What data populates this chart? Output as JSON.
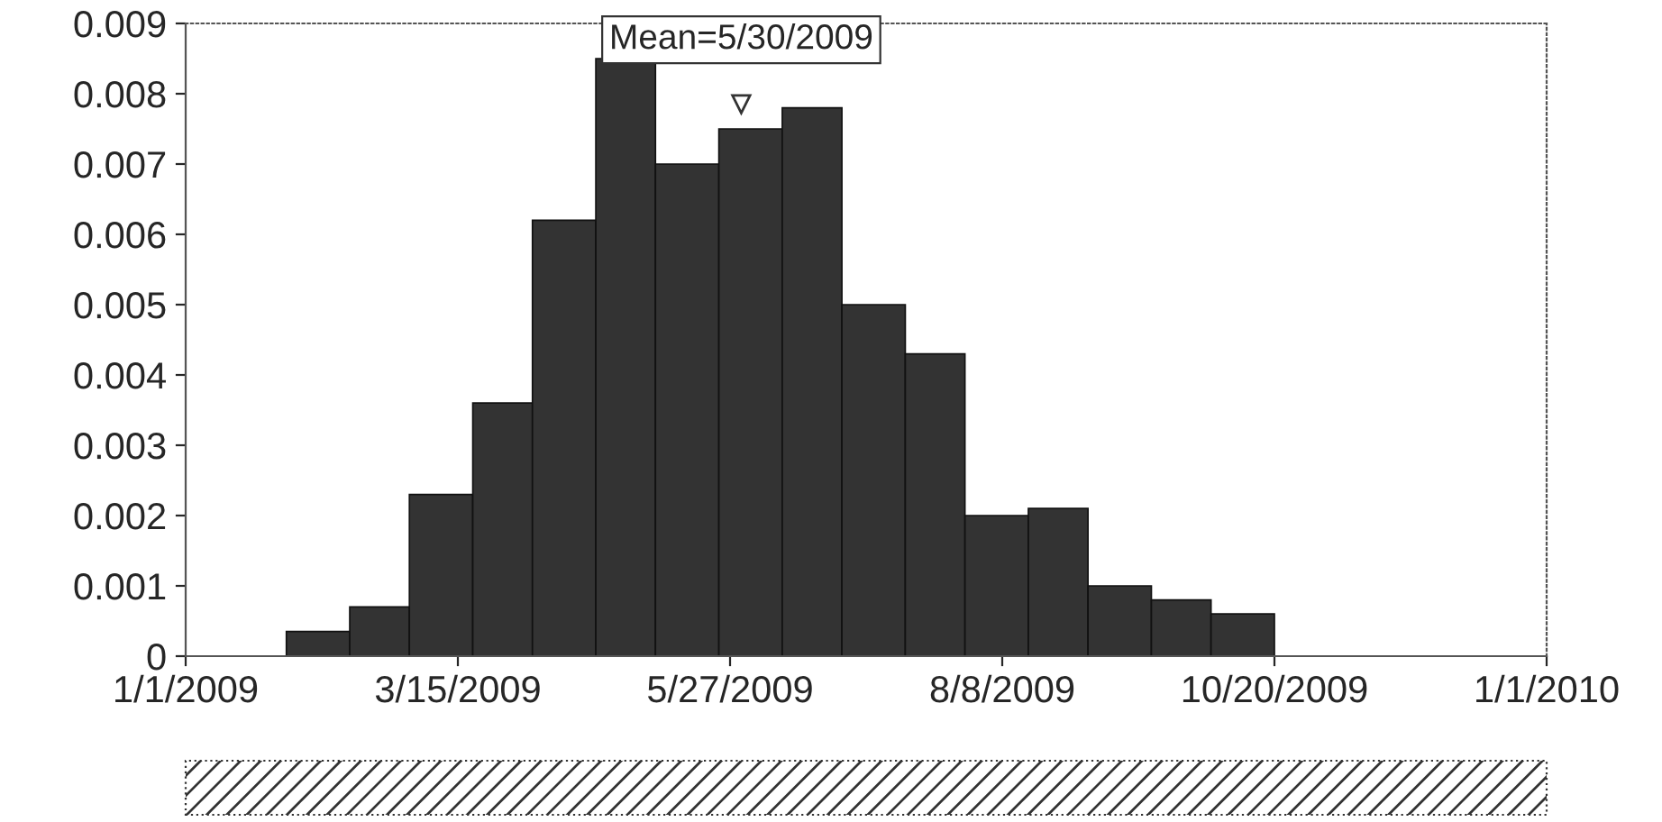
{
  "chart_data": {
    "type": "histogram",
    "bins": [
      "2009-01-28",
      "2009-02-14",
      "2009-03-02",
      "2009-03-19",
      "2009-04-04",
      "2009-04-21",
      "2009-05-07",
      "2009-05-24",
      "2009-06-10",
      "2009-06-26",
      "2009-07-13",
      "2009-07-29",
      "2009-08-15",
      "2009-08-31",
      "2009-09-17",
      "2009-10-03",
      "2009-10-20"
    ],
    "values": [
      0.00035,
      0.0007,
      0.0023,
      0.0036,
      0.0062,
      0.0085,
      0.007,
      0.0075,
      0.0078,
      0.005,
      0.0043,
      0.002,
      0.0021,
      0.001,
      0.0008,
      0.0006
    ],
    "color": "#333333",
    "xlim": [
      "2009-01-01",
      "2010-01-01"
    ],
    "xticks": [
      {
        "value": "2009-01-01",
        "label": "1/1/2009"
      },
      {
        "value": "2009-03-15",
        "label": "3/15/2009"
      },
      {
        "value": "2009-05-27",
        "label": "5/27/2009"
      },
      {
        "value": "2009-08-08",
        "label": "8/8/2009"
      },
      {
        "value": "2009-10-20",
        "label": "10/20/2009"
      },
      {
        "value": "2010-01-01",
        "label": "1/1/2010"
      }
    ],
    "ylim": [
      0,
      0.009
    ],
    "yticks": [
      0,
      0.001,
      0.002,
      0.003,
      0.004,
      0.005,
      0.006,
      0.007,
      0.008,
      0.009
    ],
    "grid": false,
    "annotations": [
      {
        "text": "Mean=5/30/2009",
        "x": "2009-05-30",
        "y": 0.00785
      }
    ]
  }
}
